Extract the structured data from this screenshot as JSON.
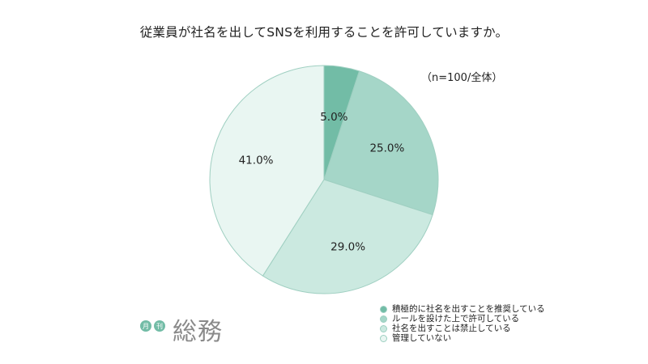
{
  "chart_data": {
    "type": "pie",
    "title": "従業員が社名を出してSNSを利用することを許可していますか。",
    "note": "（n=100/全体）",
    "slices": [
      {
        "label": "積極的に社名を出すことを推奨している",
        "value": 5.0,
        "display": "5.0%",
        "color": "#72bca6"
      },
      {
        "label": "ルールを設けた上で許可している",
        "value": 25.0,
        "display": "25.0%",
        "color": "#a5d6c8"
      },
      {
        "label": "社名を出すことは禁止している",
        "value": 29.0,
        "display": "29.0%",
        "color": "#cbe9e0"
      },
      {
        "label": "管理していない",
        "value": 41.0,
        "display": "41.0%",
        "color": "#e9f6f2"
      }
    ],
    "start": "top",
    "direction": "clockwise",
    "legend_position": "bottom-right"
  },
  "logo": {
    "badge_1": "月",
    "badge_2": "刊",
    "main": "総務"
  }
}
